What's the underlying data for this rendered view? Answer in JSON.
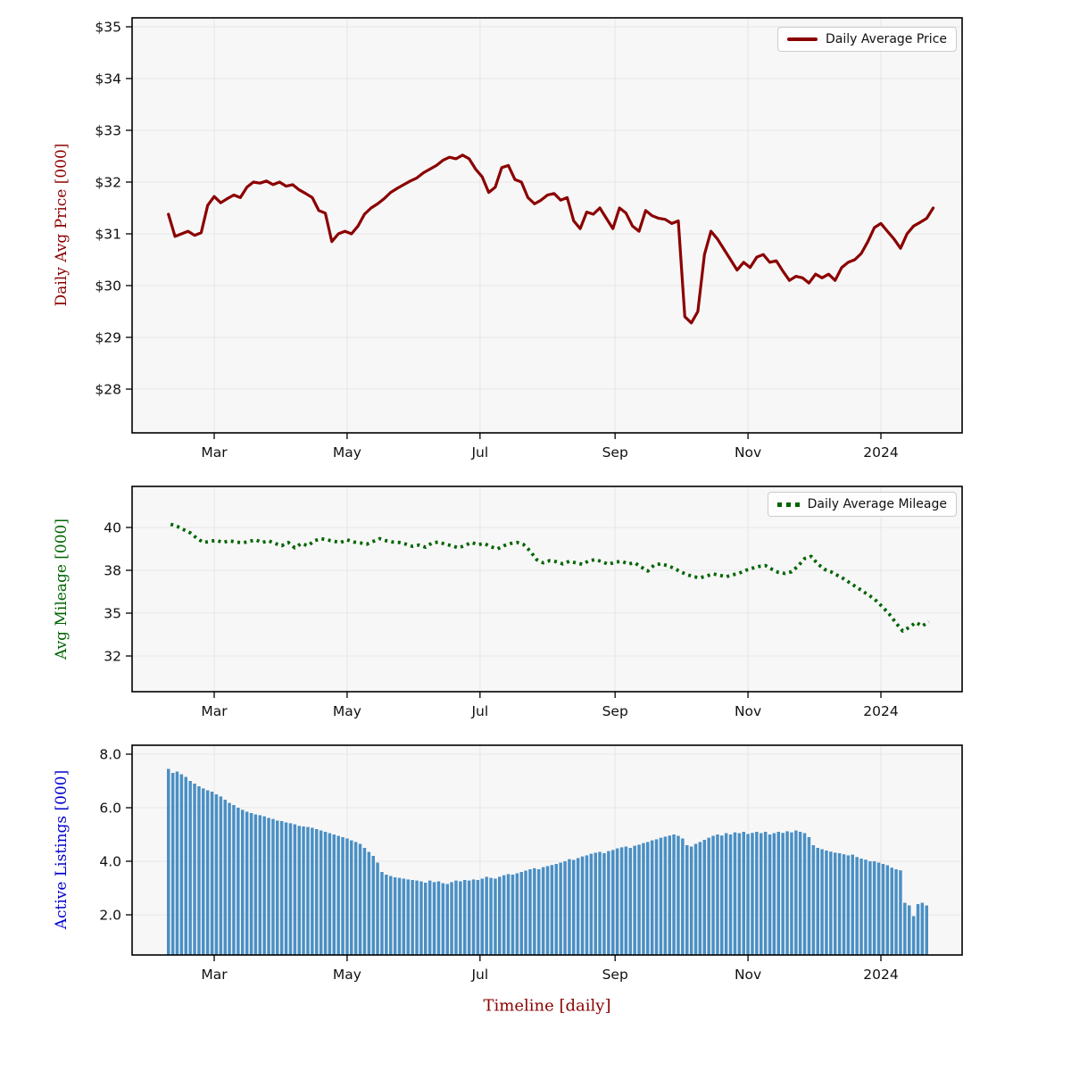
{
  "figure": {
    "background": "#ffffff",
    "plot_background": "#f7f7f7",
    "grid_color": "#e7e7e7",
    "spine_color": "#000000",
    "tick_label_color": "#111111"
  },
  "xaxis": {
    "label": "Timeline [daily]",
    "label_color": "#8b0000",
    "ticks": [
      {
        "label": "Mar",
        "day": 21
      },
      {
        "label": "May",
        "day": 82
      },
      {
        "label": "Jul",
        "day": 143
      },
      {
        "label": "Sep",
        "day": 205
      },
      {
        "label": "Nov",
        "day": 266
      },
      {
        "label": "2024",
        "day": 327
      }
    ]
  },
  "chart_data": [
    {
      "type": "line",
      "name": "daily-average-price",
      "legend": "Daily Average Price",
      "legend_position": "upper right",
      "ylabel": "Daily Avg Price [000]",
      "color": "#8b0000",
      "line_style": "solid",
      "grid": true,
      "ylim": [
        27.2,
        35.2
      ],
      "yticks": [
        {
          "v": 35,
          "label": "$35"
        },
        {
          "v": 34,
          "label": "$34"
        },
        {
          "v": 33,
          "label": "$33"
        },
        {
          "v": 32,
          "label": "$32"
        },
        {
          "v": 31,
          "label": "$31"
        },
        {
          "v": 30,
          "label": "$30"
        },
        {
          "v": 29,
          "label": "$29"
        },
        {
          "v": 28,
          "label": "$28"
        }
      ],
      "x_start_day": 0,
      "x_step_days": 3,
      "values": [
        31.38,
        30.95,
        31.0,
        31.05,
        30.97,
        31.02,
        31.55,
        31.72,
        31.6,
        31.68,
        31.75,
        31.7,
        31.9,
        32.0,
        31.98,
        32.02,
        31.95,
        32.0,
        31.92,
        31.95,
        31.85,
        31.78,
        31.7,
        31.45,
        31.4,
        30.85,
        31.0,
        31.05,
        31.0,
        31.15,
        31.38,
        31.5,
        31.58,
        31.68,
        31.8,
        31.88,
        31.95,
        32.02,
        32.08,
        32.18,
        32.25,
        32.32,
        32.42,
        32.48,
        32.45,
        32.52,
        32.45,
        32.25,
        32.1,
        31.8,
        31.9,
        32.28,
        32.32,
        32.05,
        32.0,
        31.7,
        31.58,
        31.65,
        31.75,
        31.78,
        31.65,
        31.7,
        31.25,
        31.1,
        31.42,
        31.38,
        31.5,
        31.3,
        31.1,
        31.5,
        31.4,
        31.15,
        31.05,
        31.45,
        31.35,
        31.3,
        31.28,
        31.2,
        31.25,
        29.4,
        29.28,
        29.5,
        30.6,
        31.05,
        30.9,
        30.7,
        30.5,
        30.3,
        30.45,
        30.35,
        30.55,
        30.6,
        30.45,
        30.48,
        30.28,
        30.1,
        30.18,
        30.15,
        30.05,
        30.22,
        30.15,
        30.22,
        30.1,
        30.35,
        30.45,
        30.5,
        30.62,
        30.85,
        31.12,
        31.2,
        31.05,
        30.9,
        30.72,
        31.0,
        31.15,
        31.22,
        31.3,
        31.5
      ]
    },
    {
      "type": "line",
      "name": "daily-average-mileage",
      "legend": "Daily Average Mileage",
      "legend_position": "upper right",
      "ylabel": "Avg Mileage [000]",
      "color": "#006400",
      "line_style": "dotted",
      "grid": true,
      "ylim": [
        29.5,
        42.0
      ],
      "yticks": [
        {
          "v": 40,
          "label": "40"
        },
        {
          "v": 38,
          "label": "38"
        },
        {
          "v": 35,
          "label": "35"
        },
        {
          "v": 32,
          "label": "32"
        }
      ],
      "x_start_day": 1,
      "x_step_days": 3,
      "values": [
        40.15,
        40.05,
        39.9,
        39.75,
        39.5,
        39.3,
        39.35,
        39.4,
        39.3,
        39.38,
        39.32,
        39.28,
        39.35,
        39.42,
        39.3,
        39.38,
        39.25,
        39.15,
        39.3,
        39.05,
        39.25,
        39.15,
        39.38,
        39.48,
        39.42,
        39.35,
        39.3,
        39.42,
        39.32,
        39.28,
        39.22,
        39.35,
        39.48,
        39.38,
        39.32,
        39.3,
        39.22,
        39.12,
        39.18,
        39.08,
        39.28,
        39.32,
        39.22,
        39.15,
        39.05,
        39.15,
        39.3,
        39.2,
        39.25,
        39.1,
        39.0,
        39.15,
        39.25,
        39.3,
        39.2,
        38.9,
        38.5,
        38.35,
        38.45,
        38.4,
        38.3,
        38.42,
        38.35,
        38.28,
        38.45,
        38.5,
        38.4,
        38.28,
        38.38,
        38.42,
        38.3,
        38.35,
        38.15,
        37.95,
        38.25,
        38.3,
        38.22,
        38.1,
        37.9,
        37.7,
        37.55,
        37.48,
        37.6,
        37.75,
        37.65,
        37.55,
        37.68,
        37.8,
        38.0,
        38.1,
        38.18,
        38.22,
        38.05,
        37.85,
        37.78,
        37.9,
        38.2,
        38.55,
        38.65,
        38.3,
        38.05,
        37.9,
        37.65,
        37.4,
        37.1,
        36.8,
        36.5,
        36.2,
        35.85,
        35.4,
        34.9,
        34.3,
        33.75,
        34.0,
        34.35,
        34.1,
        34.4
      ]
    },
    {
      "type": "bar",
      "name": "active-listings",
      "legend": null,
      "ylabel": "Active Listings [000]",
      "color": "#4a8fc4",
      "ylabel_color": "#0000cd",
      "grid": true,
      "ylim": [
        0.5,
        8.3
      ],
      "yticks": [
        {
          "v": 8,
          "label": "8.0"
        },
        {
          "v": 6,
          "label": "6.0"
        },
        {
          "v": 4,
          "label": "4.0"
        },
        {
          "v": 2,
          "label": "2.0"
        }
      ],
      "x_start_day": 0,
      "x_step_days": 2,
      "values": [
        7.45,
        7.3,
        7.35,
        7.25,
        7.15,
        7.0,
        6.9,
        6.8,
        6.72,
        6.65,
        6.6,
        6.5,
        6.42,
        6.3,
        6.18,
        6.1,
        6.0,
        5.92,
        5.85,
        5.8,
        5.75,
        5.72,
        5.68,
        5.62,
        5.58,
        5.52,
        5.5,
        5.45,
        5.42,
        5.38,
        5.32,
        5.3,
        5.28,
        5.25,
        5.2,
        5.15,
        5.1,
        5.05,
        5.0,
        4.95,
        4.9,
        4.85,
        4.78,
        4.72,
        4.65,
        4.5,
        4.35,
        4.2,
        3.95,
        3.6,
        3.5,
        3.45,
        3.4,
        3.38,
        3.35,
        3.32,
        3.3,
        3.28,
        3.25,
        3.2,
        3.28,
        3.22,
        3.25,
        3.18,
        3.15,
        3.22,
        3.28,
        3.25,
        3.3,
        3.28,
        3.32,
        3.3,
        3.35,
        3.42,
        3.38,
        3.35,
        3.42,
        3.48,
        3.52,
        3.5,
        3.55,
        3.6,
        3.65,
        3.7,
        3.74,
        3.7,
        3.78,
        3.82,
        3.86,
        3.9,
        3.95,
        4.0,
        4.08,
        4.05,
        4.12,
        4.18,
        4.22,
        4.28,
        4.32,
        4.35,
        4.3,
        4.38,
        4.42,
        4.48,
        4.52,
        4.55,
        4.5,
        4.58,
        4.62,
        4.68,
        4.72,
        4.78,
        4.82,
        4.88,
        4.92,
        4.96,
        5.0,
        4.95,
        4.85,
        4.6,
        4.55,
        4.65,
        4.72,
        4.8,
        4.88,
        4.95,
        5.0,
        4.96,
        5.05,
        5.0,
        5.08,
        5.05,
        5.1,
        5.02,
        5.06,
        5.1,
        5.05,
        5.1,
        5.0,
        5.05,
        5.1,
        5.06,
        5.12,
        5.08,
        5.15,
        5.1,
        5.05,
        4.9,
        4.6,
        4.5,
        4.45,
        4.4,
        4.36,
        4.32,
        4.3,
        4.26,
        4.22,
        4.25,
        4.16,
        4.1,
        4.06,
        4.0,
        4.0,
        3.95,
        3.9,
        3.85,
        3.76,
        3.7,
        3.66,
        2.45,
        2.35,
        1.95,
        2.4,
        2.45,
        2.35
      ]
    }
  ]
}
